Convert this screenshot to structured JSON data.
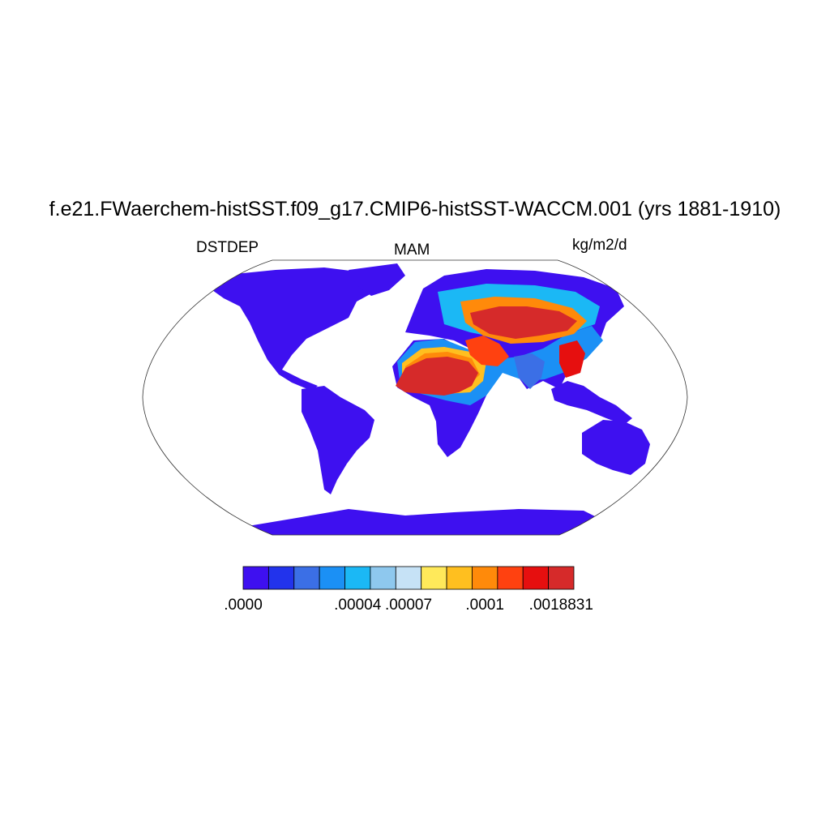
{
  "title": "f.e21.FWaerchem-histSST.f09_g17.CMIP6-histSST-WACCM.001 (yrs 1881-1910)",
  "left_label": "DSTDEP",
  "center_label": "MAM",
  "right_label": "kg/m2/d",
  "colorbar": {
    "colors": [
      "#3e10f0",
      "#2233ec",
      "#3b6fe6",
      "#1b90f5",
      "#1bb8f5",
      "#8ec8ee",
      "#c6e2f6",
      "#ffe95a",
      "#ffbf1f",
      "#ff8a0a",
      "#ff4110",
      "#e60f0f",
      "#d62a2a"
    ],
    "labels": [
      {
        "text": ".0000",
        "index": 0
      },
      {
        "text": ".00004",
        "index": 4
      },
      {
        "text": ".00007",
        "index": 6
      },
      {
        "text": ".0001",
        "index": 9
      },
      {
        "text": ".0018831",
        "index": 12
      }
    ]
  },
  "map_colors": {
    "low": "#3e10f0",
    "low2": "#2233ec",
    "mid1": "#3b6fe6",
    "mid2": "#1b90f5",
    "mid3": "#1bb8f5",
    "mid4": "#8ec8ee",
    "mid5": "#c6e2f6",
    "y1": "#ffe95a",
    "y2": "#ffbf1f",
    "o1": "#ff8a0a",
    "o2": "#ff4110",
    "r1": "#e60f0f",
    "high": "#d62a2a"
  }
}
